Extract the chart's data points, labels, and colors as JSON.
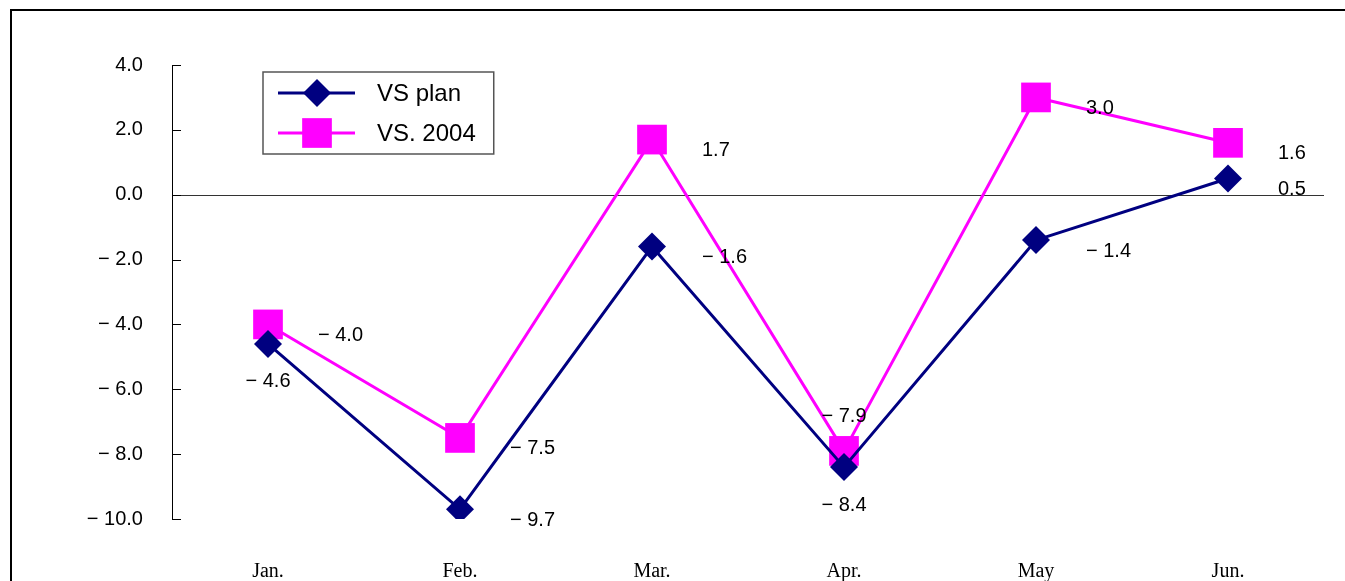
{
  "chart_data": {
    "type": "line",
    "categories": [
      "Jan.",
      "Feb.",
      "Mar.",
      "Apr.",
      "May",
      "Jun."
    ],
    "series": [
      {
        "name": "VS plan",
        "color": "#000080",
        "marker": "diamond",
        "values": [
          -4.6,
          -9.7,
          -1.6,
          -8.4,
          -1.4,
          0.5
        ],
        "value_labels": [
          "− 4.6",
          "− 9.7",
          "− 1.6",
          "− 8.4",
          "− 1.4",
          "0.5"
        ]
      },
      {
        "name": "VS. 2004",
        "color": "#ff00ff",
        "marker": "square",
        "values": [
          -4.0,
          -7.5,
          1.7,
          -7.9,
          3.0,
          1.6
        ],
        "value_labels": [
          "− 4.0",
          "− 7.5",
          "1.7",
          "− 7.9",
          "3.0",
          "1.6"
        ]
      }
    ],
    "ylim": [
      -10,
      4
    ],
    "yticks": [
      {
        "value": 4,
        "label": "4.0"
      },
      {
        "value": 2,
        "label": "2.0"
      },
      {
        "value": 0,
        "label": "0.0"
      },
      {
        "value": -2,
        "label": "− 2.0"
      },
      {
        "value": -4,
        "label": "− 4.0"
      },
      {
        "value": -6,
        "label": "− 6.0"
      },
      {
        "value": -8,
        "label": "− 8.0"
      },
      {
        "value": -10,
        "label": "− 10.0"
      }
    ],
    "legend": "top left",
    "line_style": "solid"
  }
}
